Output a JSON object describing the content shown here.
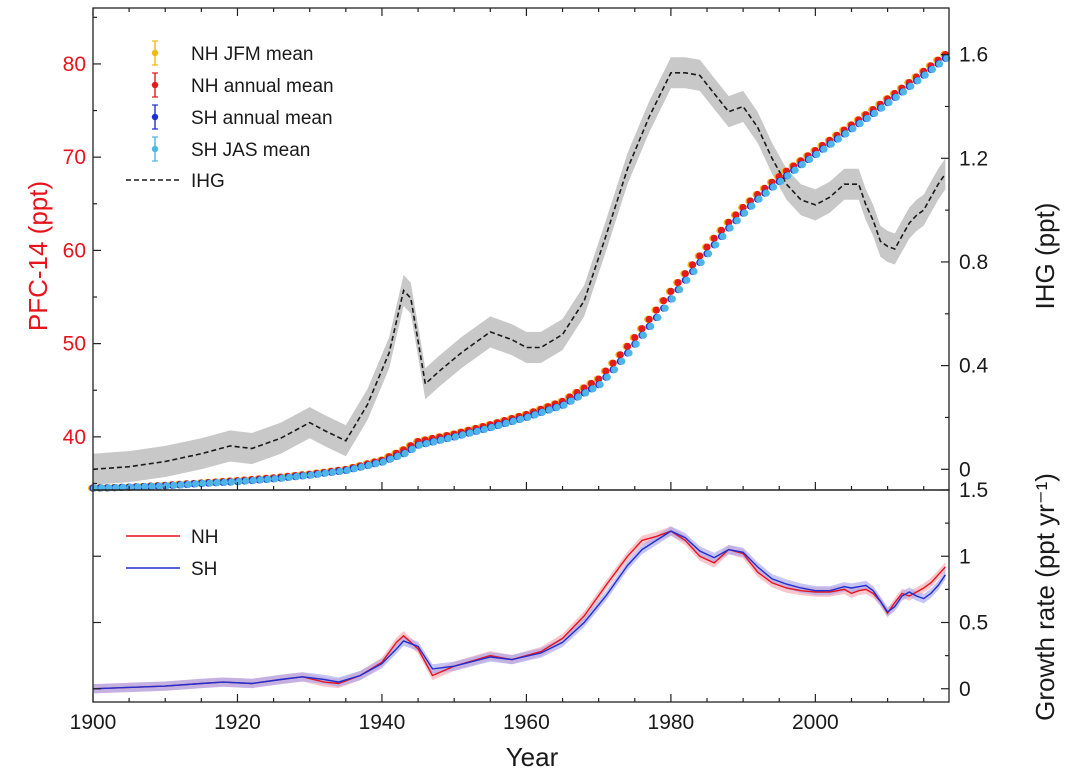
{
  "chart_data": [
    {
      "type": "scatter",
      "panel": "top",
      "title": "",
      "xlabel": "",
      "ylabel_left": "PFC-14 (ppt)",
      "ylabel_right": "IHG (ppt)",
      "xlim": [
        1900,
        2018.5
      ],
      "ylim_left": [
        34.3,
        86.0
      ],
      "ylim_right": [
        -0.08,
        1.78
      ],
      "left_ticks": [
        40,
        50,
        60,
        70,
        80
      ],
      "right_ticks": [
        0,
        0.4,
        0.8,
        1.2,
        1.6
      ],
      "right_tick_labels": [
        "0",
        "0.4",
        "0.8",
        "1.2",
        "1.6"
      ],
      "legend": "top-left",
      "grid": false,
      "series": [
        {
          "name": "NH JFM mean",
          "axis": "left",
          "color": "#f2b90f",
          "marker": "dot",
          "x": [
            1900,
            1905,
            1910,
            1915,
            1920,
            1925,
            1930,
            1935,
            1940,
            1943,
            1945,
            1950,
            1955,
            1960,
            1965,
            1970,
            1972,
            1974,
            1976,
            1978,
            1980,
            1982,
            1984,
            1986,
            1988,
            1990,
            1992,
            1994,
            1996,
            1998,
            2000,
            2004,
            2008,
            2012,
            2016,
            2018
          ],
          "y": [
            34.5,
            34.6,
            34.8,
            35.05,
            35.3,
            35.6,
            36.0,
            36.5,
            37.5,
            38.6,
            39.5,
            40.3,
            41.3,
            42.4,
            43.8,
            46.2,
            47.9,
            49.7,
            51.6,
            53.6,
            55.6,
            57.5,
            59.4,
            61.3,
            63.0,
            64.6,
            66.0,
            67.3,
            68.5,
            69.6,
            70.7,
            72.9,
            75.1,
            77.4,
            79.8,
            81.0
          ]
        },
        {
          "name": "NH annual mean",
          "axis": "left",
          "color": "#e41a1c",
          "marker": "dot",
          "x": [
            1900,
            1905,
            1910,
            1915,
            1920,
            1925,
            1930,
            1935,
            1940,
            1943,
            1945,
            1950,
            1955,
            1960,
            1965,
            1970,
            1972,
            1974,
            1976,
            1978,
            1980,
            1982,
            1984,
            1986,
            1988,
            1990,
            1992,
            1994,
            1996,
            1998,
            2000,
            2004,
            2008,
            2012,
            2016,
            2018
          ],
          "y": [
            34.5,
            34.6,
            34.8,
            35.05,
            35.3,
            35.6,
            36.0,
            36.5,
            37.5,
            38.6,
            39.5,
            40.3,
            41.3,
            42.4,
            43.8,
            46.2,
            47.9,
            49.7,
            51.6,
            53.6,
            55.6,
            57.5,
            59.4,
            61.3,
            63.0,
            64.6,
            66.0,
            67.3,
            68.5,
            69.6,
            70.7,
            72.9,
            75.1,
            77.4,
            79.8,
            81.0
          ]
        },
        {
          "name": "SH annual mean",
          "axis": "left",
          "color": "#1f2fd0",
          "marker": "dot",
          "x": [
            1900,
            1905,
            1910,
            1915,
            1920,
            1925,
            1930,
            1935,
            1940,
            1943,
            1945,
            1950,
            1955,
            1960,
            1965,
            1970,
            1972,
            1974,
            1976,
            1978,
            1980,
            1982,
            1984,
            1986,
            1988,
            1990,
            1992,
            1994,
            1996,
            1998,
            2000,
            2004,
            2008,
            2012,
            2016,
            2018
          ],
          "y": [
            34.5,
            34.6,
            34.75,
            35.0,
            35.2,
            35.5,
            35.9,
            36.4,
            37.3,
            38.2,
            39.1,
            40.0,
            41.0,
            42.1,
            43.4,
            45.6,
            47.2,
            49.0,
            50.9,
            52.8,
            54.8,
            56.8,
            58.7,
            60.6,
            62.4,
            64.0,
            65.5,
            66.8,
            68.0,
            69.2,
            70.3,
            72.5,
            74.7,
            77.0,
            79.4,
            80.6
          ]
        },
        {
          "name": "SH JAS mean",
          "axis": "left",
          "color": "#4fb4e6",
          "marker": "dot",
          "x": [
            1900,
            1905,
            1910,
            1915,
            1920,
            1925,
            1930,
            1935,
            1940,
            1943,
            1945,
            1950,
            1955,
            1960,
            1965,
            1970,
            1972,
            1974,
            1976,
            1978,
            1980,
            1982,
            1984,
            1986,
            1988,
            1990,
            1992,
            1994,
            1996,
            1998,
            2000,
            2004,
            2008,
            2012,
            2016,
            2018
          ],
          "y": [
            34.5,
            34.6,
            34.75,
            35.0,
            35.2,
            35.5,
            35.9,
            36.4,
            37.3,
            38.2,
            39.1,
            40.0,
            41.0,
            42.1,
            43.4,
            45.6,
            47.2,
            49.0,
            50.9,
            52.8,
            54.8,
            56.8,
            58.7,
            60.6,
            62.4,
            64.0,
            65.5,
            66.8,
            68.0,
            69.2,
            70.3,
            72.5,
            74.7,
            77.0,
            79.4,
            80.6
          ]
        },
        {
          "name": "IHG",
          "axis": "right",
          "color": "#1a1a1a",
          "style": "dashed",
          "band_color": "#c8c8c8",
          "band_half_width": 0.06,
          "x": [
            1900,
            1905,
            1910,
            1915,
            1919,
            1922,
            1926,
            1930,
            1932,
            1935,
            1938,
            1941,
            1943,
            1944,
            1946,
            1948,
            1951,
            1955,
            1958,
            1960,
            1962,
            1965,
            1968,
            1971,
            1974,
            1977,
            1980,
            1982,
            1984,
            1986,
            1988,
            1990,
            1992,
            1994,
            1996,
            1998,
            2000,
            2002,
            2004,
            2006,
            2007,
            2008,
            2009,
            2010,
            2011,
            2012,
            2013,
            2014,
            2015,
            2016,
            2017,
            2018
          ],
          "y": [
            0.0,
            0.01,
            0.03,
            0.06,
            0.09,
            0.08,
            0.12,
            0.18,
            0.15,
            0.11,
            0.25,
            0.45,
            0.69,
            0.66,
            0.33,
            0.38,
            0.45,
            0.53,
            0.5,
            0.47,
            0.47,
            0.52,
            0.65,
            0.9,
            1.16,
            1.36,
            1.53,
            1.53,
            1.52,
            1.45,
            1.38,
            1.4,
            1.32,
            1.2,
            1.1,
            1.04,
            1.02,
            1.05,
            1.1,
            1.1,
            1.02,
            0.96,
            0.88,
            0.86,
            0.85,
            0.9,
            0.95,
            0.98,
            1.0,
            1.05,
            1.1,
            1.14
          ]
        }
      ]
    },
    {
      "type": "line",
      "panel": "bottom",
      "title": "",
      "xlabel": "Year",
      "ylabel_right": "Growth rate (ppt yr⁻¹)",
      "xlim": [
        1900,
        2018.5
      ],
      "ylim": [
        -0.1,
        1.5
      ],
      "x_ticks": [
        1900,
        1920,
        1940,
        1960,
        1980,
        2000
      ],
      "right_ticks": [
        0,
        0.5,
        1,
        1.5
      ],
      "right_tick_labels": [
        "0",
        "0.5",
        "1",
        "1.5"
      ],
      "legend": "top-left",
      "grid": false,
      "series": [
        {
          "name": "NH",
          "color": "#e8141c",
          "band_color": "#f6a8b0",
          "x": [
            1900,
            1905,
            1910,
            1915,
            1918,
            1922,
            1926,
            1929,
            1932,
            1934,
            1937,
            1940,
            1942,
            1943,
            1945,
            1947,
            1950,
            1955,
            1958,
            1962,
            1965,
            1968,
            1971,
            1974,
            1976,
            1978,
            1980,
            1982,
            1984,
            1986,
            1988,
            1990,
            1992,
            1994,
            1996,
            1998,
            2000,
            2002,
            2004,
            2005,
            2006,
            2007,
            2008,
            2009,
            2010,
            2011,
            2012,
            2013,
            2014,
            2015,
            2016,
            2017,
            2018
          ],
          "y": [
            0.0,
            0.01,
            0.02,
            0.04,
            0.05,
            0.04,
            0.07,
            0.09,
            0.05,
            0.04,
            0.1,
            0.2,
            0.35,
            0.4,
            0.3,
            0.1,
            0.17,
            0.25,
            0.22,
            0.28,
            0.38,
            0.55,
            0.78,
            1.0,
            1.12,
            1.15,
            1.19,
            1.12,
            1.0,
            0.95,
            1.05,
            1.02,
            0.88,
            0.8,
            0.76,
            0.74,
            0.73,
            0.73,
            0.75,
            0.72,
            0.74,
            0.75,
            0.72,
            0.66,
            0.57,
            0.65,
            0.72,
            0.7,
            0.73,
            0.76,
            0.8,
            0.86,
            0.92
          ]
        },
        {
          "name": "SH",
          "color": "#1f2fd0",
          "band_color": "#a8a6ee",
          "x": [
            1900,
            1905,
            1910,
            1915,
            1918,
            1922,
            1926,
            1929,
            1932,
            1934,
            1937,
            1940,
            1942,
            1943,
            1945,
            1947,
            1950,
            1955,
            1958,
            1962,
            1965,
            1968,
            1971,
            1974,
            1976,
            1978,
            1980,
            1982,
            1984,
            1986,
            1988,
            1990,
            1992,
            1994,
            1996,
            1998,
            2000,
            2002,
            2004,
            2005,
            2006,
            2007,
            2008,
            2009,
            2010,
            2011,
            2012,
            2013,
            2014,
            2015,
            2016,
            2017,
            2018
          ],
          "y": [
            0.0,
            0.01,
            0.02,
            0.04,
            0.05,
            0.04,
            0.07,
            0.09,
            0.07,
            0.05,
            0.1,
            0.19,
            0.3,
            0.36,
            0.32,
            0.15,
            0.17,
            0.24,
            0.22,
            0.27,
            0.35,
            0.5,
            0.7,
            0.93,
            1.05,
            1.12,
            1.19,
            1.14,
            1.04,
            0.99,
            1.05,
            1.03,
            0.92,
            0.83,
            0.79,
            0.76,
            0.74,
            0.74,
            0.77,
            0.76,
            0.77,
            0.78,
            0.74,
            0.66,
            0.58,
            0.62,
            0.7,
            0.73,
            0.7,
            0.68,
            0.72,
            0.78,
            0.86
          ]
        }
      ]
    }
  ]
}
